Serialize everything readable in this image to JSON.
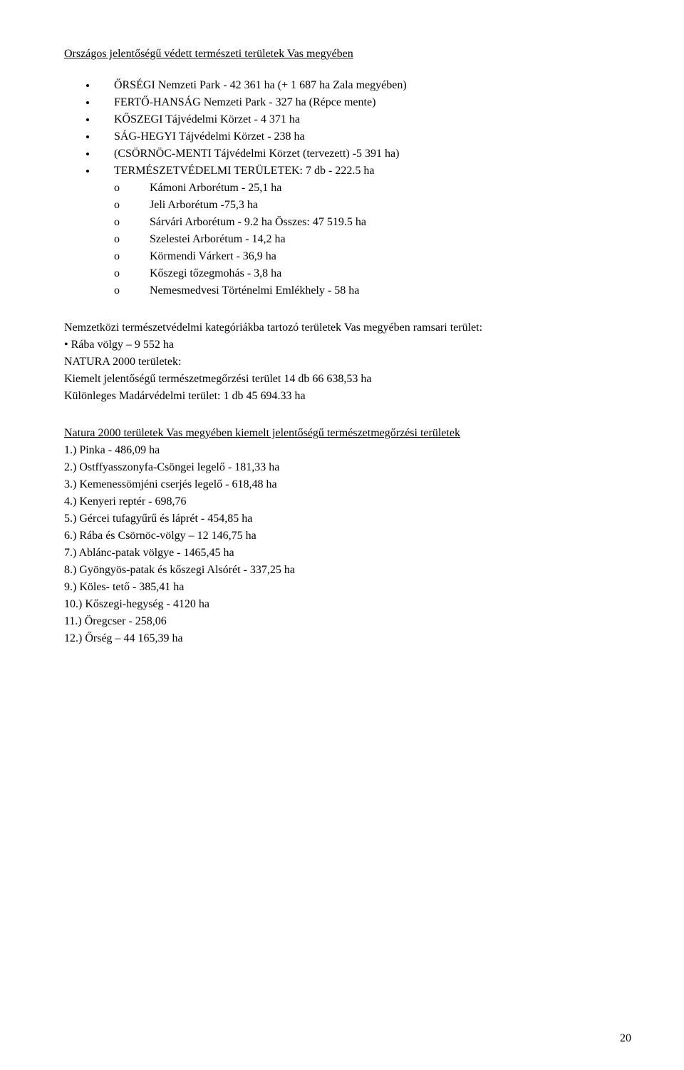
{
  "title_main": "Országos jelentőségű védett természeti területek Vas megyében",
  "bullets_main": [
    "ŐRSÉGI Nemzeti Park - 42 361 ha (+ 1 687 ha Zala megyében)",
    "FERTŐ-HANSÁG Nemzeti Park - 327 ha (Répce mente)",
    "KŐSZEGI Tájvédelmi Körzet - 4 371 ha",
    "SÁG-HEGYI Tájvédelmi Körzet - 238 ha",
    "(CSÖRNÖC-MENTI Tájvédelmi Körzet (tervezett) -5 391 ha)",
    "TERMÉSZETVÉDELMI TERÜLETEK: 7 db - 222.5 ha"
  ],
  "sublist": [
    "Kámoni Arborétum - 25,1 ha",
    "Jeli Arborétum -75,3 ha",
    "Sárvári Arborétum - 9.2 ha Összes: 47 519.5 ha",
    "Szelestei Arborétum - 14,2 ha",
    "Körmendi Várkert - 36,9 ha",
    "Kőszegi tőzegmohás - 3,8 ha",
    "Nemesmedvesi Történelmi Emlékhely - 58 ha"
  ],
  "intl": {
    "line1": "Nemzetközi természetvédelmi kategóriákba tartozó területek Vas megyében ramsari terület:",
    "line2": "• Rába völgy – 9 552 ha",
    "line3": "NATURA 2000 területek:",
    "line4": "Kiemelt jelentőségű természetmegőrzési terület 14 db 66 638,53 ha",
    "line5": "Különleges Madárvédelmi terület: 1 db 45 694.33 ha"
  },
  "natura_title": "Natura 2000 területek Vas megyében kiemelt jelentőségű természetmegőrzési területek",
  "natura_list": [
    "1.) Pinka - 486,09 ha",
    "2.) Ostffyasszonyfa-Csöngei legelő - 181,33 ha",
    "3.) Kemenessömjéni cserjés legelő - 618,48 ha",
    "4.) Kenyeri reptér - 698,76",
    "5.) Gércei tufagyűrű és láprét - 454,85 ha",
    "6.) Rába és Csörnöc-völgy – 12 146,75 ha",
    "7.) Ablánc-patak völgye - 1465,45 ha",
    "8.) Gyöngyös-patak és kőszegi Alsórét - 337,25 ha",
    "9.) Köles- tető - 385,41 ha",
    "10.) Kőszegi-hegység - 4120 ha",
    "11.) Öregcser - 258,06",
    "12.) Őrség – 44 165,39 ha"
  ],
  "page_number": "20"
}
